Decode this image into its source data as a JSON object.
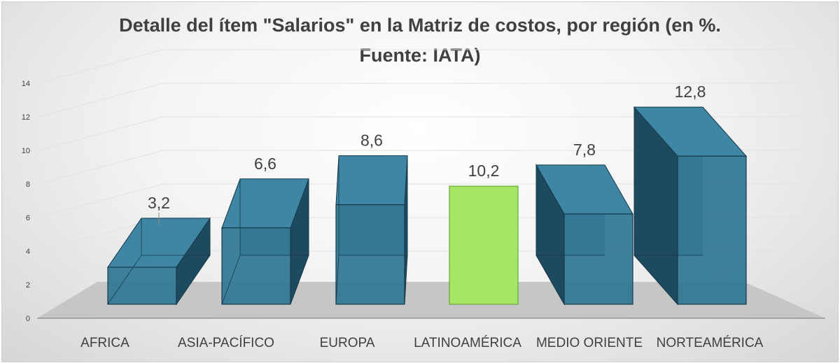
{
  "chart_data": {
    "type": "bar",
    "style": "3d-column",
    "title_line1": "Detalle del ítem \"Salarios\" en la Matriz de costos, por región (en %.",
    "title_line2": "Fuente: IATA)",
    "categories": [
      "AFRICA",
      "ASIA-PACÍFICO",
      "EUROPA",
      "LATINOAMÉRICA",
      "MEDIO ORIENTE",
      "NORTEAMÉRICA"
    ],
    "values": [
      3.2,
      6.6,
      8.6,
      10.2,
      7.8,
      12.8
    ],
    "value_labels": [
      "3,2",
      "6,6",
      "8,6",
      "10,2",
      "7,8",
      "12,8"
    ],
    "highlight_index": 3,
    "ylim": [
      0,
      14
    ],
    "yticks": [
      0,
      2,
      4,
      6,
      8,
      10,
      12,
      14
    ],
    "ytick_labels": [
      "0",
      "2",
      "4",
      "6",
      "8",
      "10",
      "12",
      "14"
    ],
    "xlabel": "",
    "ylabel": "",
    "grid": true,
    "legend": "none",
    "colors": {
      "bar_front": "#2f7592",
      "bar_side": "#1d4a5e",
      "bar_top": "#3f86a4",
      "bar_edge": "#16394a",
      "highlight_front": "#a6e665",
      "highlight_side": "#7fc448",
      "highlight_top": "#c2f28c",
      "highlight_edge": "#6aa83a",
      "floor": "#c6c6c6",
      "gridline": "#e2e2e2",
      "text": "#404040"
    }
  }
}
